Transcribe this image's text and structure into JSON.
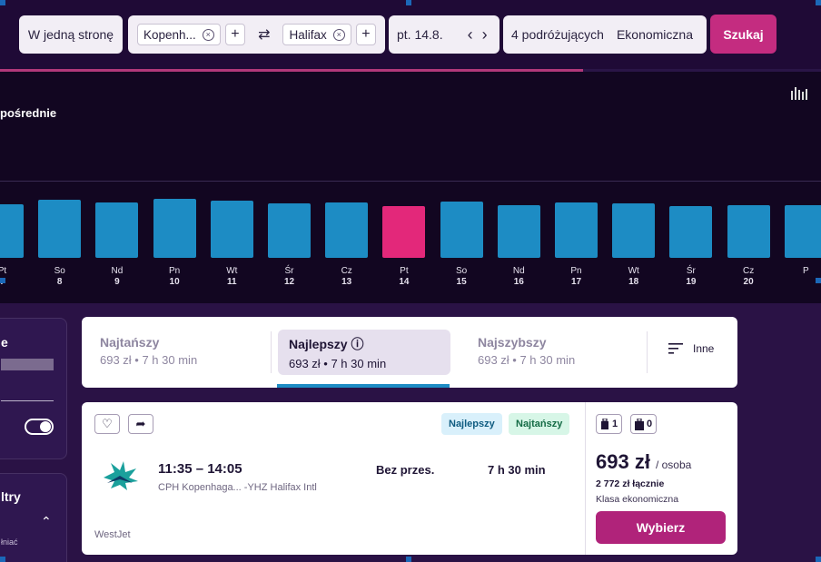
{
  "search": {
    "trip_type": "W jedną stronę",
    "origin": "Kopenh...",
    "destination": "Halifax",
    "date": "pt. 14.8.",
    "travelers": "4 podróżujących",
    "cabin": "Ekonomiczna",
    "search_label": "Szukaj",
    "swap_symbol": "⇄",
    "prev_symbol": "‹",
    "next_symbol": "›",
    "plus_symbol": "+",
    "clear_symbol": "×"
  },
  "progress": {
    "percent": 71
  },
  "chart": {
    "title": "pośrednie",
    "chart_icon": "bar-chart-icon",
    "days": [
      {
        "dow": "Pt",
        "day": "7",
        "active": false
      },
      {
        "dow": "So",
        "day": "8",
        "active": false
      },
      {
        "dow": "Nd",
        "day": "9",
        "active": false
      },
      {
        "dow": "Pn",
        "day": "10",
        "active": false
      },
      {
        "dow": "Wt",
        "day": "11",
        "active": false
      },
      {
        "dow": "Śr",
        "day": "12",
        "active": false
      },
      {
        "dow": "Cz",
        "day": "13",
        "active": false
      },
      {
        "dow": "Pt",
        "day": "14",
        "active": true
      },
      {
        "dow": "So",
        "day": "15",
        "active": false
      },
      {
        "dow": "Nd",
        "day": "16",
        "active": false
      },
      {
        "dow": "Pn",
        "day": "17",
        "active": false
      },
      {
        "dow": "Wt",
        "day": "18",
        "active": false
      },
      {
        "dow": "Śr",
        "day": "19",
        "active": false
      },
      {
        "dow": "Cz",
        "day": "20",
        "active": false
      },
      {
        "dow": "P",
        "day": "",
        "active": false
      }
    ],
    "colors": {
      "bar": "#1d8cc4",
      "active": "#e3287a"
    }
  },
  "chart_data": {
    "type": "bar",
    "categories": [
      "Pt 7",
      "So 8",
      "Nd 9",
      "Pn 10",
      "Wt 11",
      "Śr 12",
      "Cz 13",
      "Pt 14",
      "So 15",
      "Nd 16",
      "Pn 17",
      "Wt 18",
      "Śr 19",
      "Cz 20",
      "P"
    ],
    "values": [
      59,
      64,
      61,
      65,
      63,
      60,
      61,
      57,
      62,
      58,
      61,
      60,
      57,
      58,
      58
    ],
    "ylim": [
      0,
      100
    ]
  },
  "sidebar": {
    "card1_title": "e",
    "card2_title": "ltry",
    "card2_sub": "łniać",
    "chevron": "⌃"
  },
  "tabs": [
    {
      "label": "Najtańszy",
      "sub": "693 zł • 7 h 30 min",
      "active": false
    },
    {
      "label": "Najlepszy ⓘ",
      "sub": "693 zł • 7 h 30 min",
      "active": true
    },
    {
      "label": "Najszybszy",
      "sub": "693 zł • 7 h 30 min",
      "active": false
    }
  ],
  "sort": {
    "label": "Inne",
    "icon": "sort-lines-icon"
  },
  "flight": {
    "time": "11:35 – 14:05",
    "route": "CPH Kopenhaga... -YHZ Halifax Intl",
    "stops": "Bez przes.",
    "duration": "7 h 30 min",
    "airline": "WestJet",
    "badges": [
      "Najlepszy",
      "Najtańszy"
    ],
    "price": "693 zł",
    "per": "/ osoba",
    "total": "2 772 zł łącznie",
    "cabin": "Klasa ekonomiczna",
    "select_label": "Wybierz",
    "bag_cabin": "1",
    "bag_checked": "0",
    "heart": "♡",
    "share": "➦"
  }
}
